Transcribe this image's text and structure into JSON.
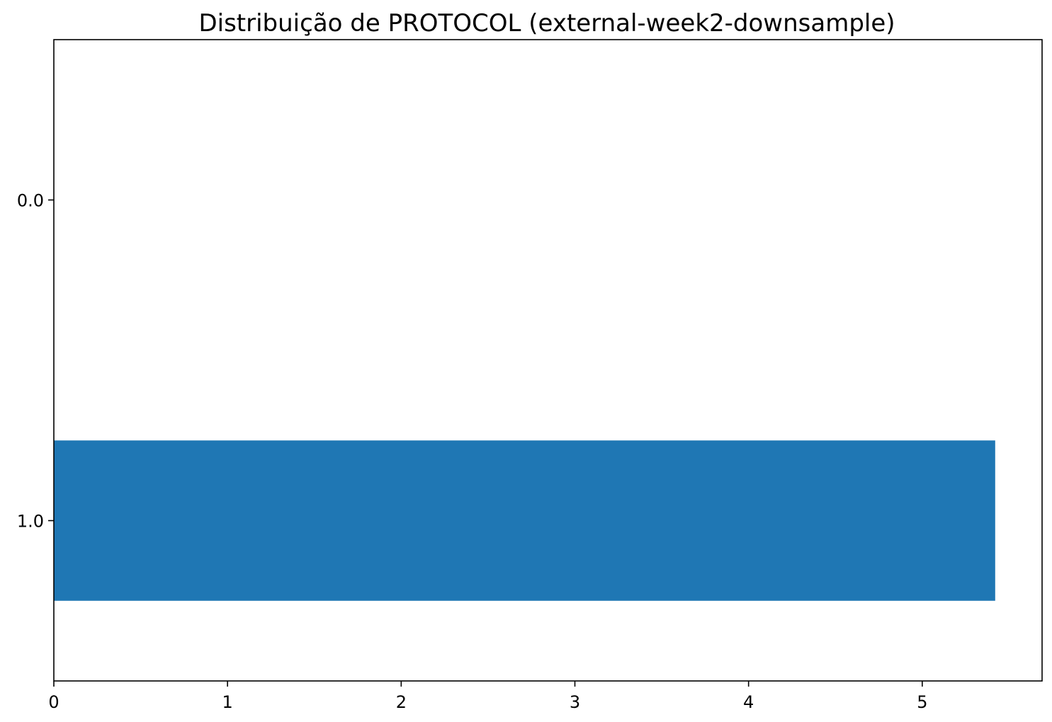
{
  "chart_data": {
    "type": "bar",
    "orientation": "horizontal",
    "title": "Distribuição de PROTOCOL (external-week2-downsample)",
    "xlabel": "",
    "ylabel": "",
    "categories": [
      "0.0",
      "1.0"
    ],
    "values": [
      0,
      5.42
    ],
    "xlim": [
      0,
      5.69
    ],
    "x_ticks": [
      "0",
      "1",
      "2",
      "3",
      "4",
      "5"
    ],
    "y_ticks": [
      "0.0",
      "1.0"
    ],
    "grid": false,
    "color": "#1f77b4"
  }
}
